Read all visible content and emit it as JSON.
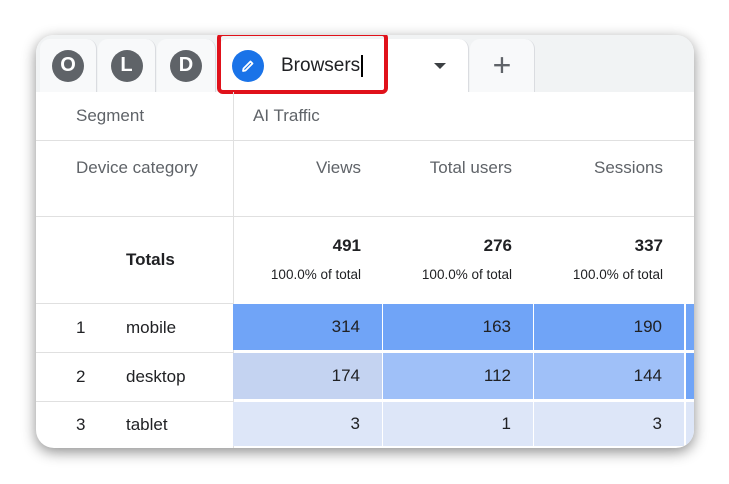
{
  "tabs": [
    {
      "label": "O"
    },
    {
      "label": "L"
    },
    {
      "label": "D"
    }
  ],
  "active_tab": {
    "name": "Browsers",
    "icon": "pencil-icon"
  },
  "add_tab_icon": "plus-icon",
  "header": {
    "segment_label": "Segment",
    "segment_value": "AI Traffic",
    "dimension": "Device category",
    "columns": [
      "Views",
      "Total users",
      "Sessions"
    ]
  },
  "totals": {
    "label": "Totals",
    "values": [
      "491",
      "276",
      "337"
    ],
    "pcts": [
      "100.0% of total",
      "100.0% of total",
      "100.0% of total"
    ]
  },
  "rows": [
    {
      "rank": "1",
      "name": "mobile",
      "values": [
        "314",
        "163",
        "190"
      ]
    },
    {
      "rank": "2",
      "name": "desktop",
      "values": [
        "174",
        "112",
        "144"
      ]
    },
    {
      "rank": "3",
      "name": "tablet",
      "values": [
        "3",
        "1",
        "3"
      ]
    }
  ],
  "colors": {
    "highlight": "#e0111a",
    "heat_high": "#70a4f7",
    "heat_mid": "#9fc0f8",
    "heat_low": "#dde6f8",
    "accent": "#1a73e8"
  }
}
